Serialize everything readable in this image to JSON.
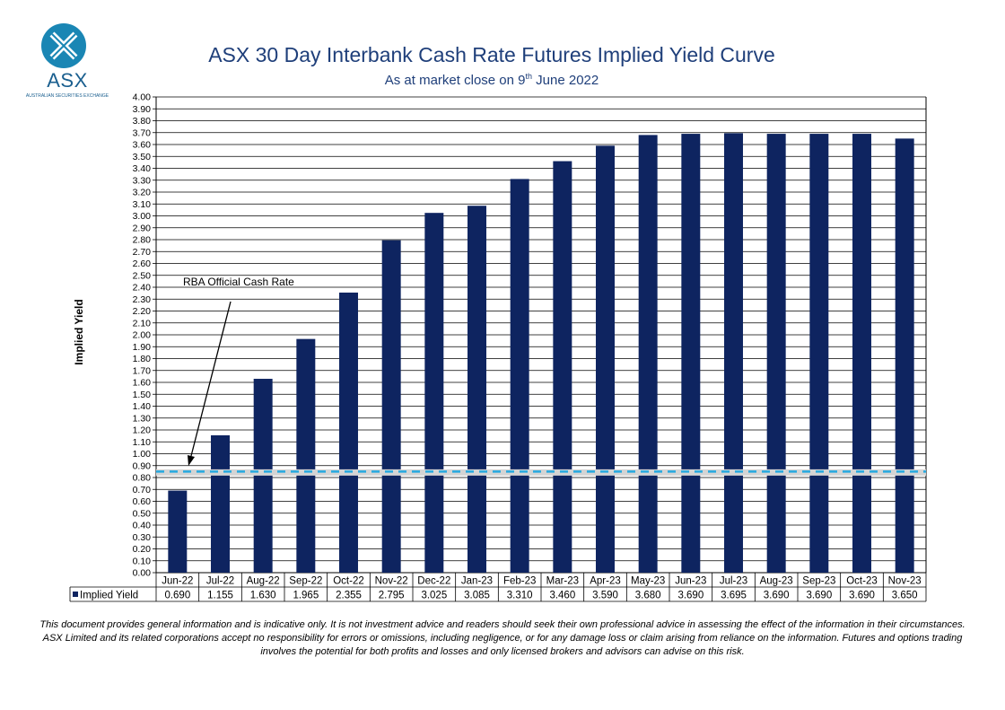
{
  "logo": {
    "text": "ASX",
    "subtext": "AUSTRALIAN SECURITIES EXCHANGE"
  },
  "colors": {
    "bar": "#0e2460",
    "cash_rate_line": "#26a9e0",
    "title": "#1f3f7a"
  },
  "chart_data": {
    "type": "bar",
    "title": "ASX 30 Day Interbank Cash Rate Futures Implied Yield Curve",
    "subtitle_before": "As at market close on 9",
    "subtitle_sup": "th",
    "subtitle_after": " June 2022",
    "ylabel": "Implied Yield",
    "ylim": [
      0,
      4
    ],
    "ytick_step": 0.1,
    "categories": [
      "Jun-22",
      "Jul-22",
      "Aug-22",
      "Sep-22",
      "Oct-22",
      "Nov-22",
      "Dec-22",
      "Jan-23",
      "Feb-23",
      "Mar-23",
      "Apr-23",
      "May-23",
      "Jun-23",
      "Jul-23",
      "Aug-23",
      "Sep-23",
      "Oct-23",
      "Nov-23"
    ],
    "series": [
      {
        "name": "Implied Yield",
        "values": [
          0.69,
          1.155,
          1.63,
          1.965,
          2.355,
          2.795,
          3.025,
          3.085,
          3.31,
          3.46,
          3.59,
          3.68,
          3.69,
          3.695,
          3.69,
          3.69,
          3.69,
          3.65
        ],
        "labels": [
          "0.690",
          "1.155",
          "1.630",
          "1.965",
          "2.355",
          "2.795",
          "3.025",
          "3.085",
          "3.310",
          "3.460",
          "3.590",
          "3.680",
          "3.690",
          "3.695",
          "3.690",
          "3.690",
          "3.690",
          "3.650"
        ]
      }
    ],
    "reference_line": {
      "value": 0.85
    },
    "annotation": {
      "text": "RBA Official Cash Rate"
    },
    "grid": true,
    "data_table": true
  },
  "disclaimer": "This document provides general information and is indicative only. It is not investment advice and readers should seek their own professional advice in assessing the effect of the information in their circumstances. ASX Limited and its related corporations accept no responsibility for errors or omissions, including negligence, or for any damage loss or claim arising from reliance on the information. Futures and options trading involves the potential for both profits and losses and only licensed brokers and advisors can advise on this risk."
}
